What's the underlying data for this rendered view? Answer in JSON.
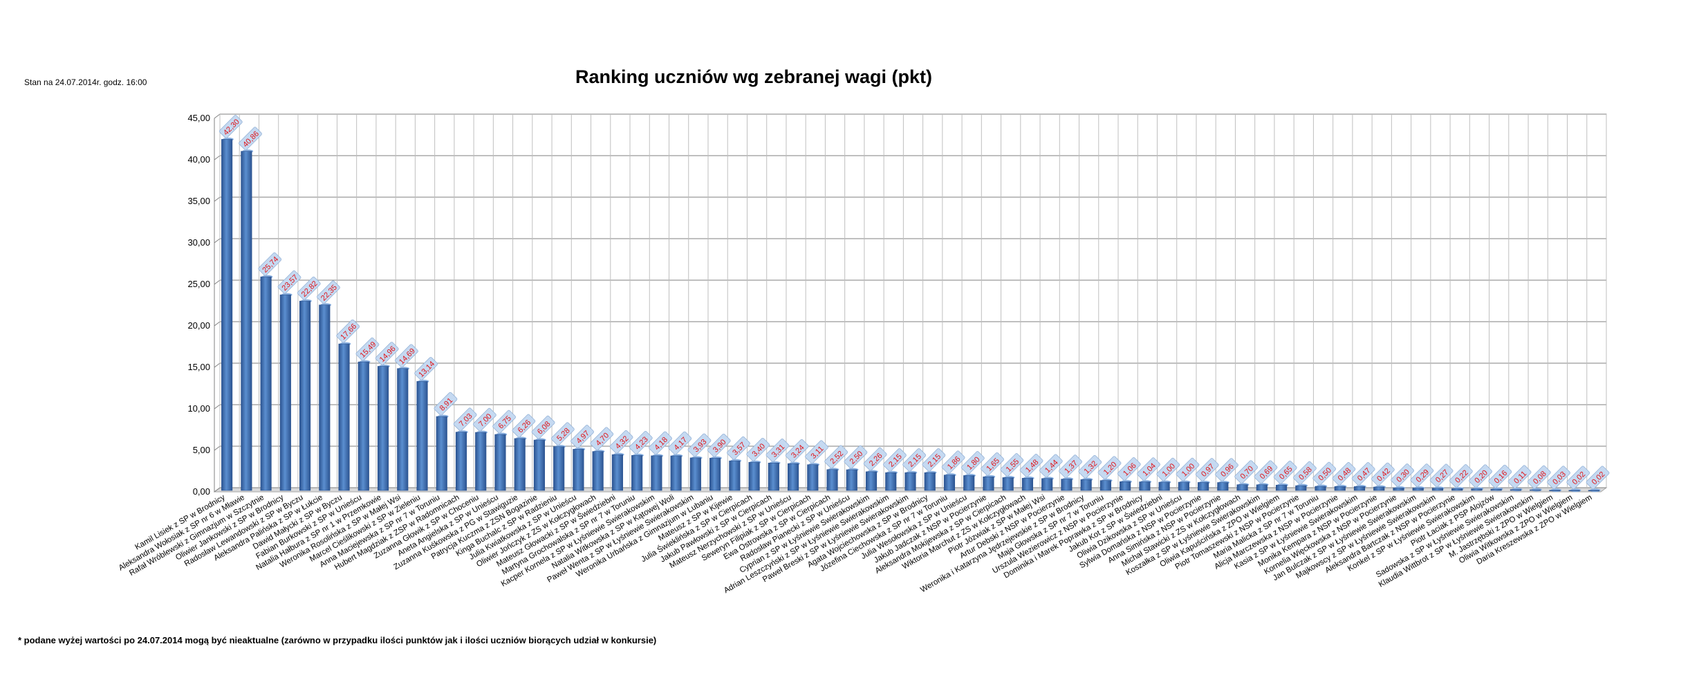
{
  "status_text": "Stan na 24.07.2014r.  godz. 16:00",
  "footnote": "* podane wyżej wartości po 24.07.2014  mogą być nieaktualne (zarówno w przypadku ilości punktów jak i ilości uczniów biorących udział w konkursie)",
  "colors": {
    "bar": "#4f81bd",
    "bar_dark": "#2c5491",
    "label_bg": "#c5d9f1",
    "label_text": "#e0161b",
    "grid": "#999999"
  },
  "chart_data": {
    "type": "bar",
    "title": "Ranking uczniów wg zebranej wagi (pkt)",
    "xlabel": "",
    "ylabel": "",
    "ylim": [
      0,
      45
    ],
    "yticks": [
      "0,00",
      "5,00",
      "10,00",
      "15,00",
      "20,00",
      "25,00",
      "30,00",
      "35,00",
      "40,00",
      "45,00"
    ],
    "grid": true,
    "categories": [
      "Kamil Lisiek z SP w Brodnicy",
      "Aleksandra Wołosiak z SP nr 6 w Mławie",
      "Rafał Wróblewski z Gimnazjum w Szczytnie",
      "Oliwier Jankowski z SP w Brodnicy",
      "Radosław Lewandowski z SP w Byczu",
      "Aleksandra Palińska z SP w Łukcie",
      "Dawid Małycki z SP w Byczu",
      "Fabian Burkowski z SP w Unieścu",
      "Natalia Hałbura z SP nr 1 w Przemkowie",
      "Weronika Rosolińska z SP w Małej Wsi",
      "Marcel Cieślikowski z SP w Zieleniu",
      "Anna Maciejewska z SP nr 7 w Toruniu",
      "Hubert Magdziak z ZSP w Radomnicach",
      "Zuzanna Głowik z SP w Choceniu",
      "Aneta Angielska z SP w Unieścu",
      "Zuzanna Kuśkowska z PG w Stawiguzie",
      "Patrycja Kuczma z ZSN Bogazinie",
      "Kinga Buchalc z SP w Radzieniu",
      "Julia Kwiatkowska z SP w Unieścu",
      "Oliwier Jończyk z ZS w Kołczygłowach",
      "Mateusz Głowacki z SP w Świedziebni",
      "Martyna Grochowalska z SP nr 7 w Toruniu",
      "Kacper Kornela z SP w Łyśniewie Swierakowskim",
      "Natalia Witkowska z SP w Kątowej Woli",
      "Paweł Wenta z SP w Łyśniewie Swierakowskim",
      "Weronika Urbańska z Gimnazjum w Lubaniu",
      "Mateusz z SP w Kijewie",
      "Julia Świeklińska z SP w Cierpicach",
      "Jakub Pawłowski z SP w Cierpicach",
      "Mateusz Nerzychowski z SP w Unieścu",
      "Seweryn Filipiak z SP w Cierpicach",
      "Ewa Ostrowska z SP w Cierpicach",
      "Radosław Pianecki z SP w Unieścu",
      "Cyprian z SP w Łyśniewie Swierakowskim",
      "Adrian Leszczyński z SP w Łyśniewie Swierakowskim",
      "Paweł Breski z SP w Łyśniewie Swierakowskim",
      "Agata Wojciechowska z SP w Brodnicy",
      "Józefina Ciechowska z SP nr 7 w Toruniu",
      "Julia Wesołowska z SP w Unieścu",
      "Jakub Jadczak z NSP w Pocierzynie",
      "Aleksandra Mokijewska z SP w Cierpicach",
      "Wiktoria Marchut z ZS w Kołczygłowach",
      "Piotr Józwiak z SP w Małej Wsi",
      "Artur Debski z NSP w Pocierzynie",
      "Weronika i Katarzyna Jędrzejewskie z SP w Brodnicy",
      "Maja Głowska z SP nr 7 w Toruniu",
      "Urszula Wezierowicz z NSP w Pocierzynie",
      "Dominika i Marek Poprawka z SP w Brodnicy",
      "Jakub Kot z SP w Świedziebni",
      "Oliwia Dzikowska z SP w Unieścu",
      "Sylwia Domańska z NSP w Pocierzynie",
      "Anna Simińska z NSP w Pocierzynie",
      "Michał Stawicki z ZS w Kołczygłowach",
      "Koszałka z SP w Łyśniewie Swierakowskim",
      "Oliwia Kapuścińska z ZPO w Wielgiem",
      "Piotr Tomaszewski z NSP w Pocierzynie",
      "Maria Malicka z SP nr 7 w Toruniu",
      "Alicja Marczewska z NSP w Pocierzynie",
      "Kasia z SP w Łyśniewie Swierakowskim",
      "Monika Kempara z NSP w Pocierzynie",
      "Kornelia Więckowska z NSP w Pocierzynie",
      "Jan Bulczak z SP w Łyśniewie Swierakowskim",
      "Majkowscy z SP w Łyśniewie Swierakowskim",
      "Aleksandra Bartczak z NSP w Pocierzynie",
      "Konkel z SP w Łyśniewie Swierakowskim",
      "Piotr Łaciak z PSP Alojzów",
      "Sadowska z SP w Łyśniewie Swierakowskim",
      "Klaudia Wittbrot z SP w Łyśniewie Swierakowskim",
      "M. Jastrzębski z ZPO w Wielgiem",
      "Oliwia Witkowska z ZPO w Wielgiem",
      "Daria Kreszewska z ZPO w Wielgiem"
    ],
    "values": [
      42.3,
      40.86,
      25.74,
      23.57,
      22.82,
      22.35,
      17.66,
      15.49,
      14.96,
      14.69,
      13.14,
      8.91,
      7.03,
      7.0,
      6.75,
      6.26,
      6.08,
      5.28,
      4.97,
      4.7,
      4.32,
      4.23,
      4.18,
      4.17,
      3.93,
      3.9,
      3.57,
      3.4,
      3.31,
      3.24,
      3.11,
      2.52,
      2.5,
      2.26,
      2.15,
      2.15,
      2.15,
      1.86,
      1.8,
      1.65,
      1.55,
      1.48,
      1.44,
      1.37,
      1.32,
      1.2,
      1.06,
      1.04,
      1.0,
      1.0,
      0.97,
      0.96,
      0.7,
      0.69,
      0.65,
      0.58,
      0.5,
      0.48,
      0.47,
      0.42,
      0.3,
      0.29,
      0.27,
      0.22,
      0.2,
      0.16,
      0.11,
      0.08,
      0.03,
      0.02,
      0.02
    ],
    "data_labels": [
      "42,30",
      "40,86",
      "25,74",
      "23,57",
      "22,82",
      "22,35",
      "17,66",
      "15,49",
      "14,96",
      "14,69",
      "13,14",
      "8,91",
      "7,03",
      "7,00",
      "6,75",
      "6,26",
      "6,08",
      "5,28",
      "4,97",
      "4,70",
      "4,32",
      "4,23",
      "4,18",
      "4,17",
      "3,93",
      "3,90",
      "3,57",
      "3,40",
      "3,31",
      "3,24",
      "3,11",
      "2,52",
      "2,50",
      "2,26",
      "2,15",
      "2,15",
      "2,15",
      "1,86",
      "1,80",
      "1,65",
      "1,55",
      "1,48",
      "1,44",
      "1,37",
      "1,32",
      "1,20",
      "1,06",
      "1,04",
      "1,00",
      "1,00",
      "0,97",
      "0,96",
      "0,70",
      "0,69",
      "0,65",
      "0,58",
      "0,50",
      "0,48",
      "0,47",
      "0,42",
      "0,30",
      "0,29",
      "0,27",
      "0,22",
      "0,20",
      "0,16",
      "0,11",
      "0,08",
      "0,03",
      "0,02",
      "0,02"
    ]
  }
}
